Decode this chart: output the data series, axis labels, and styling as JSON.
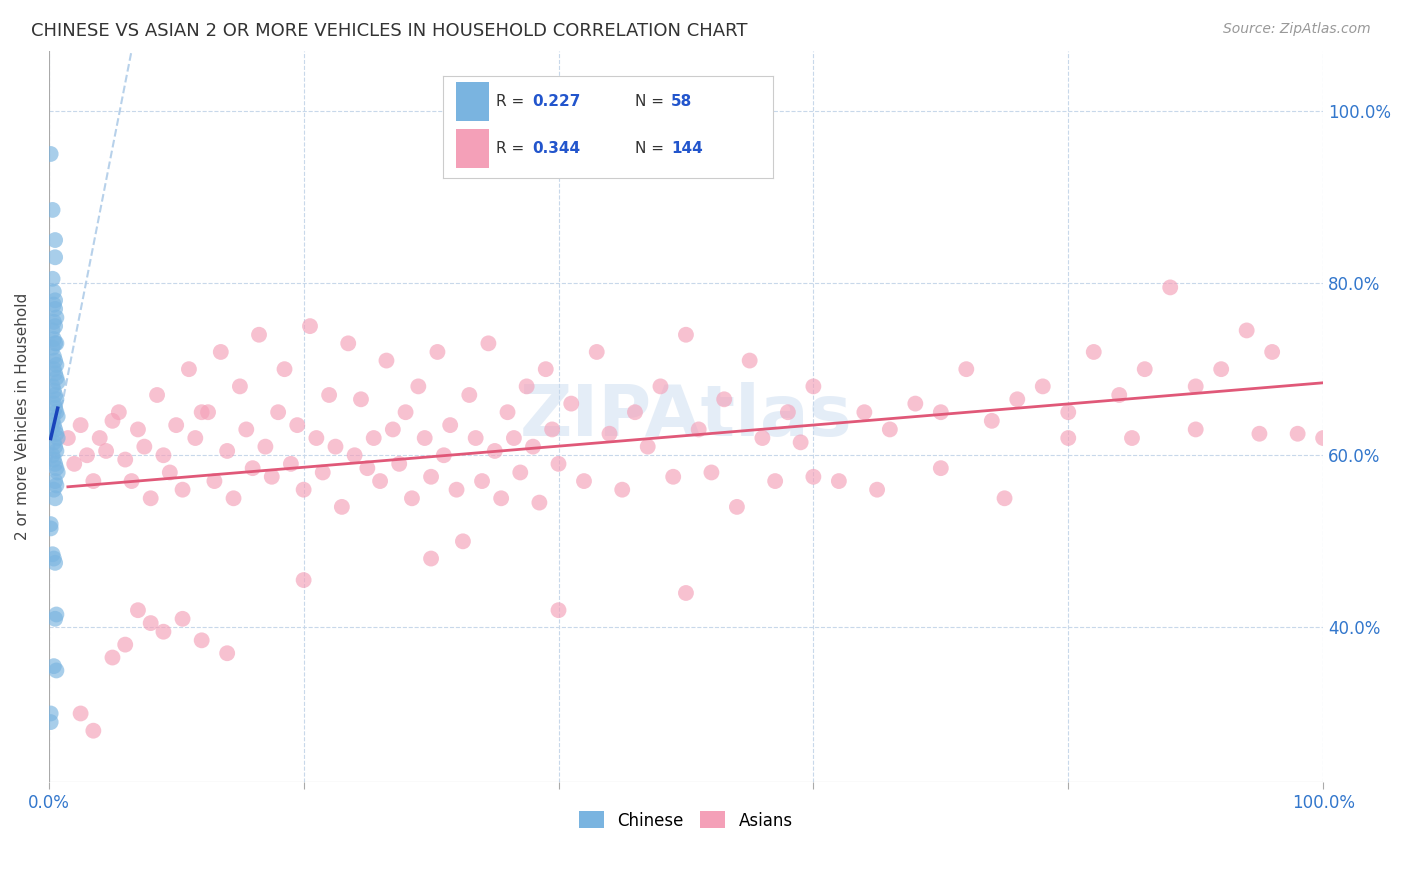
{
  "title": "CHINESE VS ASIAN 2 OR MORE VEHICLES IN HOUSEHOLD CORRELATION CHART",
  "source": "Source: ZipAtlas.com",
  "ylabel": "2 or more Vehicles in Household",
  "watermark": "ZIPAtlas",
  "xlim": [
    0.0,
    100.0
  ],
  "ylim": [
    22.0,
    107.0
  ],
  "ytick_values": [
    40.0,
    60.0,
    80.0,
    100.0
  ],
  "ytick_labels": [
    "40.0%",
    "60.0%",
    "80.0%",
    "100.0%"
  ],
  "legend_r_chinese": "0.227",
  "legend_n_chinese": "58",
  "legend_r_asian": "0.344",
  "legend_n_asian": "144",
  "chinese_color": "#7ab4e0",
  "asian_color": "#f4a0b8",
  "chinese_line_color": "#1a44bb",
  "asian_line_color": "#e05878",
  "diagonal_color": "#b0cce8",
  "background_color": "#ffffff",
  "grid_color": "#c8d8ea",
  "chinese_points": [
    [
      0.15,
      95.0
    ],
    [
      0.3,
      88.5
    ],
    [
      0.5,
      85.0
    ],
    [
      0.5,
      83.0
    ],
    [
      0.3,
      80.5
    ],
    [
      0.4,
      79.0
    ],
    [
      0.5,
      78.0
    ],
    [
      0.4,
      77.5
    ],
    [
      0.5,
      77.0
    ],
    [
      0.6,
      76.0
    ],
    [
      0.4,
      75.5
    ],
    [
      0.5,
      75.0
    ],
    [
      0.3,
      74.5
    ],
    [
      0.4,
      73.5
    ],
    [
      0.5,
      73.0
    ],
    [
      0.6,
      73.0
    ],
    [
      0.3,
      72.5
    ],
    [
      0.4,
      71.5
    ],
    [
      0.5,
      71.0
    ],
    [
      0.6,
      70.5
    ],
    [
      0.4,
      70.0
    ],
    [
      0.5,
      69.5
    ],
    [
      0.6,
      69.0
    ],
    [
      0.7,
      68.5
    ],
    [
      0.3,
      68.0
    ],
    [
      0.4,
      67.5
    ],
    [
      0.5,
      67.0
    ],
    [
      0.6,
      66.5
    ],
    [
      0.4,
      66.0
    ],
    [
      0.5,
      65.5
    ],
    [
      0.6,
      65.0
    ],
    [
      0.7,
      64.5
    ],
    [
      0.3,
      64.0
    ],
    [
      0.4,
      63.5
    ],
    [
      0.5,
      63.0
    ],
    [
      0.6,
      62.5
    ],
    [
      0.7,
      62.0
    ],
    [
      0.4,
      61.5
    ],
    [
      0.5,
      61.0
    ],
    [
      0.6,
      60.5
    ],
    [
      0.3,
      60.0
    ],
    [
      0.4,
      59.5
    ],
    [
      0.5,
      59.0
    ],
    [
      0.6,
      58.5
    ],
    [
      0.7,
      58.0
    ],
    [
      0.5,
      57.0
    ],
    [
      0.6,
      56.5
    ],
    [
      0.4,
      56.0
    ],
    [
      0.5,
      55.0
    ],
    [
      0.3,
      48.5
    ],
    [
      0.4,
      48.0
    ],
    [
      0.5,
      47.5
    ],
    [
      0.15,
      52.0
    ],
    [
      0.15,
      51.5
    ],
    [
      0.6,
      41.5
    ],
    [
      0.5,
      41.0
    ],
    [
      0.4,
      35.5
    ],
    [
      0.6,
      35.0
    ],
    [
      0.15,
      30.0
    ],
    [
      0.15,
      29.0
    ]
  ],
  "asian_points": [
    [
      1.5,
      62.0
    ],
    [
      2.0,
      59.0
    ],
    [
      2.5,
      63.5
    ],
    [
      3.0,
      60.0
    ],
    [
      3.5,
      57.0
    ],
    [
      4.0,
      62.0
    ],
    [
      4.5,
      60.5
    ],
    [
      5.0,
      64.0
    ],
    [
      5.5,
      65.0
    ],
    [
      6.0,
      59.5
    ],
    [
      6.5,
      57.0
    ],
    [
      7.0,
      63.0
    ],
    [
      7.5,
      61.0
    ],
    [
      8.0,
      55.0
    ],
    [
      8.5,
      67.0
    ],
    [
      9.0,
      60.0
    ],
    [
      9.5,
      58.0
    ],
    [
      10.0,
      63.5
    ],
    [
      10.5,
      56.0
    ],
    [
      11.0,
      70.0
    ],
    [
      11.5,
      62.0
    ],
    [
      12.0,
      65.0
    ],
    [
      12.5,
      65.0
    ],
    [
      13.0,
      57.0
    ],
    [
      13.5,
      72.0
    ],
    [
      14.0,
      60.5
    ],
    [
      14.5,
      55.0
    ],
    [
      15.0,
      68.0
    ],
    [
      15.5,
      63.0
    ],
    [
      16.0,
      58.5
    ],
    [
      16.5,
      74.0
    ],
    [
      17.0,
      61.0
    ],
    [
      17.5,
      57.5
    ],
    [
      18.0,
      65.0
    ],
    [
      18.5,
      70.0
    ],
    [
      19.0,
      59.0
    ],
    [
      19.5,
      63.5
    ],
    [
      20.0,
      56.0
    ],
    [
      20.5,
      75.0
    ],
    [
      21.0,
      62.0
    ],
    [
      21.5,
      58.0
    ],
    [
      22.0,
      67.0
    ],
    [
      22.5,
      61.0
    ],
    [
      23.0,
      54.0
    ],
    [
      23.5,
      73.0
    ],
    [
      24.0,
      60.0
    ],
    [
      24.5,
      66.5
    ],
    [
      25.0,
      58.5
    ],
    [
      25.5,
      62.0
    ],
    [
      26.0,
      57.0
    ],
    [
      26.5,
      71.0
    ],
    [
      27.0,
      63.0
    ],
    [
      27.5,
      59.0
    ],
    [
      28.0,
      65.0
    ],
    [
      28.5,
      55.0
    ],
    [
      29.0,
      68.0
    ],
    [
      29.5,
      62.0
    ],
    [
      30.0,
      57.5
    ],
    [
      30.5,
      72.0
    ],
    [
      31.0,
      60.0
    ],
    [
      31.5,
      63.5
    ],
    [
      32.0,
      56.0
    ],
    [
      32.5,
      50.0
    ],
    [
      33.0,
      67.0
    ],
    [
      33.5,
      62.0
    ],
    [
      34.0,
      57.0
    ],
    [
      34.5,
      73.0
    ],
    [
      35.0,
      60.5
    ],
    [
      35.5,
      55.0
    ],
    [
      36.0,
      65.0
    ],
    [
      36.5,
      62.0
    ],
    [
      37.0,
      58.0
    ],
    [
      37.5,
      68.0
    ],
    [
      38.0,
      61.0
    ],
    [
      38.5,
      54.5
    ],
    [
      39.0,
      70.0
    ],
    [
      39.5,
      63.0
    ],
    [
      40.0,
      59.0
    ],
    [
      41.0,
      66.0
    ],
    [
      42.0,
      57.0
    ],
    [
      43.0,
      72.0
    ],
    [
      44.0,
      62.5
    ],
    [
      45.0,
      56.0
    ],
    [
      46.0,
      65.0
    ],
    [
      47.0,
      61.0
    ],
    [
      48.0,
      68.0
    ],
    [
      49.0,
      57.5
    ],
    [
      50.0,
      74.0
    ],
    [
      51.0,
      63.0
    ],
    [
      52.0,
      58.0
    ],
    [
      53.0,
      66.5
    ],
    [
      54.0,
      54.0
    ],
    [
      55.0,
      71.0
    ],
    [
      56.0,
      62.0
    ],
    [
      57.0,
      57.0
    ],
    [
      58.0,
      65.0
    ],
    [
      59.0,
      61.5
    ],
    [
      60.0,
      68.0
    ],
    [
      62.0,
      57.0
    ],
    [
      64.0,
      65.0
    ],
    [
      66.0,
      63.0
    ],
    [
      68.0,
      66.0
    ],
    [
      70.0,
      65.0
    ],
    [
      72.0,
      70.0
    ],
    [
      74.0,
      64.0
    ],
    [
      76.0,
      66.5
    ],
    [
      78.0,
      68.0
    ],
    [
      80.0,
      65.0
    ],
    [
      82.0,
      72.0
    ],
    [
      84.0,
      67.0
    ],
    [
      86.0,
      70.0
    ],
    [
      88.0,
      79.5
    ],
    [
      90.0,
      68.0
    ],
    [
      92.0,
      70.0
    ],
    [
      94.0,
      74.5
    ],
    [
      96.0,
      72.0
    ],
    [
      98.0,
      62.5
    ],
    [
      2.5,
      30.0
    ],
    [
      3.5,
      28.0
    ],
    [
      5.0,
      36.5
    ],
    [
      6.0,
      38.0
    ],
    [
      7.0,
      42.0
    ],
    [
      8.0,
      40.5
    ],
    [
      9.0,
      39.5
    ],
    [
      10.5,
      41.0
    ],
    [
      12.0,
      38.5
    ],
    [
      14.0,
      37.0
    ],
    [
      20.0,
      45.5
    ],
    [
      30.0,
      48.0
    ],
    [
      40.0,
      42.0
    ],
    [
      50.0,
      44.0
    ],
    [
      60.0,
      57.5
    ],
    [
      65.0,
      56.0
    ],
    [
      70.0,
      58.5
    ],
    [
      75.0,
      55.0
    ],
    [
      80.0,
      62.0
    ],
    [
      85.0,
      62.0
    ],
    [
      90.0,
      63.0
    ],
    [
      95.0,
      62.5
    ],
    [
      100.0,
      62.0
    ]
  ]
}
